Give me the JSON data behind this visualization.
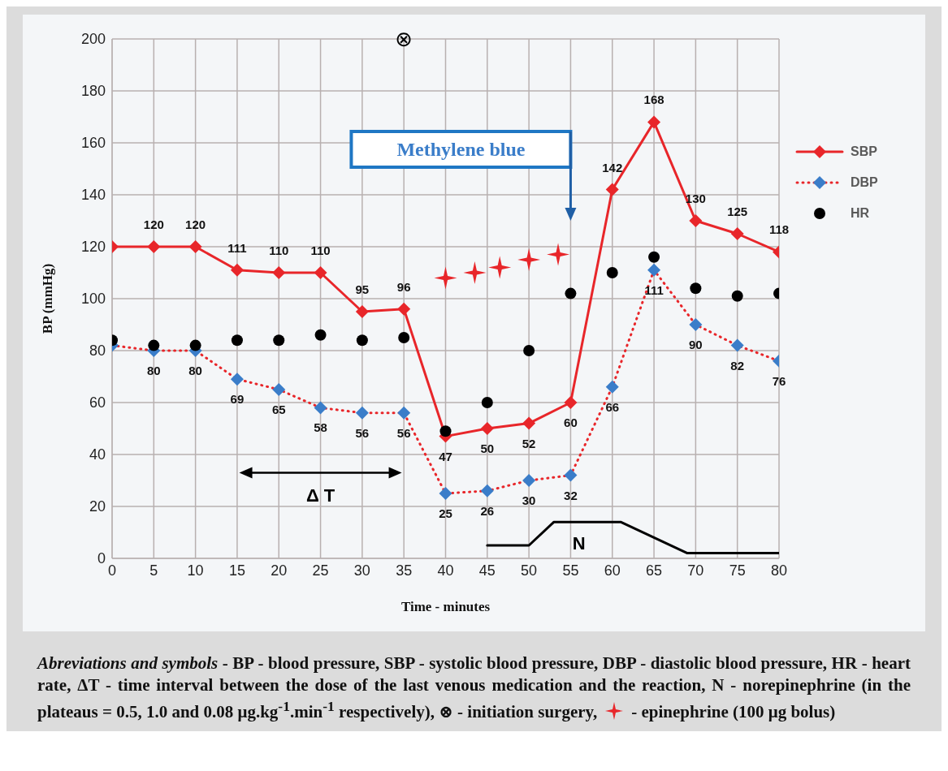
{
  "chart_data": {
    "type": "line",
    "xlabel": "Time - minutes",
    "ylabel": "BP (mmHg)",
    "x": [
      0,
      5,
      10,
      15,
      20,
      25,
      30,
      35,
      40,
      45,
      50,
      55,
      60,
      65,
      70,
      75,
      80
    ],
    "xlim": [
      0,
      80
    ],
    "xticks": [
      0,
      5,
      10,
      15,
      20,
      25,
      30,
      35,
      40,
      45,
      50,
      55,
      60,
      65,
      70,
      75,
      80
    ],
    "ylim": [
      0,
      200
    ],
    "yticks": [
      0,
      20,
      40,
      60,
      80,
      100,
      120,
      140,
      160,
      180,
      200
    ],
    "grid": true,
    "legend": "right",
    "series": [
      {
        "name": "SBP",
        "color": "#e8262a",
        "marker": "diamond",
        "line_style": "solid",
        "values": [
          120,
          120,
          120,
          111,
          110,
          110,
          95,
          96,
          47,
          50,
          52,
          60,
          142,
          168,
          130,
          125,
          118
        ],
        "value_labels": [
          null,
          "120",
          "120",
          "111",
          "110",
          "110",
          "95",
          "96",
          "47",
          "50",
          "52",
          "60",
          "142",
          "168",
          "130",
          "125",
          "118"
        ]
      },
      {
        "name": "DBP",
        "color": "#e8262a",
        "colors": [
          "#3a7dc9",
          "#3a7dc9",
          "#3a7dc9",
          "#3a7dc9",
          "#3a7dc9",
          "#3a7dc9",
          "#3a7dc9",
          "#3a7dc9",
          "#3a7dc9",
          "#3a7dc9",
          "#3a7dc9",
          "#3a7dc9",
          "#3a7dc9",
          "#3a7dc9",
          "#3a7dc9",
          "#3a7dc9",
          "#3a7dc9"
        ],
        "marker": "diamond",
        "line_style": "dotted",
        "values": [
          82,
          80,
          80,
          69,
          65,
          58,
          56,
          56,
          25,
          26,
          30,
          32,
          66,
          111,
          90,
          82,
          76
        ],
        "value_labels": [
          null,
          "80",
          "80",
          "69",
          "65",
          "58",
          "56",
          "56",
          "25",
          "26",
          "30",
          "32",
          "66",
          "111",
          "90",
          "82",
          "76"
        ]
      },
      {
        "name": "HR",
        "type": "scatter",
        "color": "#000000",
        "marker": "circle",
        "values": [
          84,
          82,
          82,
          84,
          84,
          86,
          84,
          85,
          49,
          60,
          80,
          102,
          110,
          116,
          104,
          101,
          102
        ]
      },
      {
        "type": "scatter",
        "color": "#e8262a",
        "marker": "star",
        "x": [
          40,
          43.5,
          46.5,
          50,
          53.5
        ],
        "values": [
          108,
          110,
          112,
          115,
          117
        ]
      },
      {
        "color": "#000000",
        "marker": "none",
        "line_style": "solid",
        "x": [
          45,
          50,
          53,
          61,
          69,
          80
        ],
        "values": [
          5,
          5,
          14,
          14,
          2,
          2
        ]
      }
    ],
    "annotations": [
      "⊗",
      "Methylene blue",
      "Δ T",
      "N",
      "Abreviations and symbols",
      " - BP - blood pressure, SBP - systolic blood pressure, DBP - diastolic blood pressure, HR - heart rate, ΔT - time interval between the dose of the last venous medication and the reaction, N - norepinephrine (in the plateaus = 0.5, 1.0 and 0.08 μg.kg$^{-1}$.min$^{-1}$ respectively),  ⊗ - initiation surgery,",
      "- epinephrine (100 μg bolus)"
    ]
  }
}
